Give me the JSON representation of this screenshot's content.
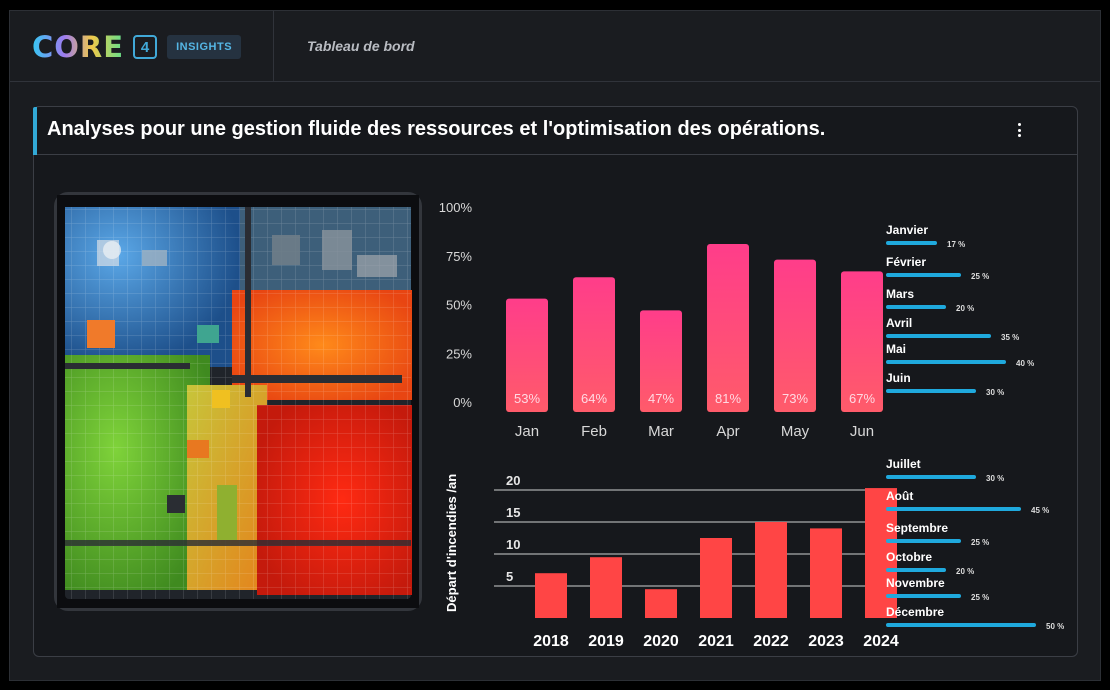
{
  "header": {
    "logo_text": "CORE",
    "logo_number": "4",
    "logo_badge": "INSIGHTS",
    "breadcrumb": "Tableau de bord"
  },
  "panel": {
    "title": "Analyses pour une gestion fluide des ressources et l'optimisation des opérations.",
    "menu_icon": "kebab-menu-icon"
  },
  "heatmap": {
    "icon": "factory-heatmap-image"
  },
  "colors": {
    "accent": "#32a9d6",
    "bar_top": "#ff3d8a",
    "bar_bottom": "#ff5b6a",
    "fire_bar": "#ff4545",
    "progress": "#1fa9dd"
  },
  "chart_data": [
    {
      "type": "bar",
      "categories": [
        "Jan",
        "Feb",
        "Mar",
        "Apr",
        "May",
        "Jun"
      ],
      "values": [
        53,
        64,
        47,
        81,
        73,
        67
      ],
      "value_labels": [
        "53%",
        "64%",
        "47%",
        "81%",
        "73%",
        "67%"
      ],
      "yticks": [
        "0%",
        "25%",
        "50%",
        "75%",
        "100%"
      ],
      "ylim": [
        0,
        100
      ],
      "grid": false
    },
    {
      "type": "bar",
      "categories": [
        "2018",
        "2019",
        "2020",
        "2021",
        "2022",
        "2023",
        "2024"
      ],
      "values": [
        7,
        9.5,
        4.5,
        12.5,
        15,
        14,
        20.3
      ],
      "ylabel": "Départ d'incendies  /an",
      "yticks": [
        "5",
        "10",
        "15",
        "20"
      ],
      "ylim": [
        0,
        21
      ],
      "grid": true
    },
    {
      "type": "bar",
      "orientation": "horizontal",
      "categories": [
        "Janvier",
        "Février",
        "Mars",
        "Avril",
        "Mai",
        "Juin"
      ],
      "values": [
        17,
        25,
        20,
        35,
        40,
        30
      ],
      "value_labels": [
        "17 %",
        "25 %",
        "20 %",
        "35 %",
        "40 %",
        "30 %"
      ],
      "xlim": [
        0,
        50
      ]
    },
    {
      "type": "bar",
      "orientation": "horizontal",
      "categories": [
        "Juillet",
        "Août",
        "Septembre",
        "Octobre",
        "Novembre",
        "Décembre"
      ],
      "values": [
        30,
        45,
        25,
        20,
        25,
        50
      ],
      "value_labels": [
        "30 %",
        "45 %",
        "25 %",
        "20 %",
        "25 %",
        "50 %"
      ],
      "xlim": [
        0,
        50
      ]
    }
  ]
}
